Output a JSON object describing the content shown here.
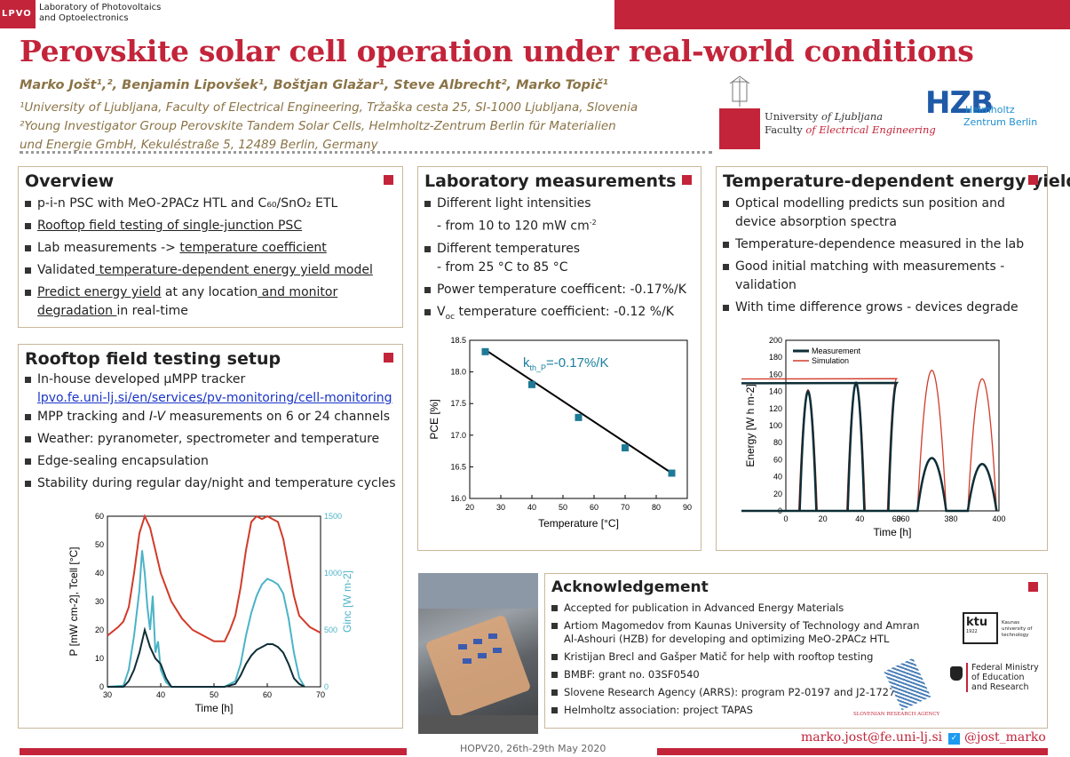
{
  "header": {
    "lab_logo": "LPVO",
    "lab_name_1": "Laboratory of Photovoltaics",
    "lab_name_2": "and Optoelectronics",
    "title": "Perovskite solar cell operation under real-world conditions",
    "authors": "Marko Jošt¹,², Benjamin Lipovšek¹, Boštjan Glažar¹, Steve Albrecht², Marko Topič¹",
    "affil_1": "¹University of Ljubljana, Faculty of Electrical Engineering, Tržaška cesta 25, SI-1000 Ljubljana, Slovenia",
    "affil_2": "²Young Investigator Group Perovskite Tandem Solar Cells, Helmholtz-Zentrum Berlin für Materialien",
    "affil_3": "und Energie GmbH, Kekuléstraße 5, 12489 Berlin, Germany",
    "uni_line1_a": "University ",
    "uni_line1_b": "of Ljubljana",
    "uni_line2_a": "Faculty ",
    "uni_line2_b": "of Electrical Engineering",
    "hzb": "HZB",
    "hzb_sub1": "Helmholtz",
    "hzb_sub2": "Zentrum Berlin"
  },
  "overview": {
    "title": "Overview",
    "items": [
      "p-i-n PSC with MeO-2PACz HTL and C₆₀/SnO₂ ETL",
      "Rooftop field testing of single-junction PSC",
      "Lab measurements -> ",
      "temperature coefficient",
      "Validated",
      " temperature-dependent energy yield model",
      "Predict energy yield",
      " at any location",
      " and monitor",
      "degradation ",
      "in real-time"
    ]
  },
  "rooftop": {
    "title": "Rooftop field testing setup",
    "items": [
      "In-house developed µMPP tracker",
      "lpvo.fe.uni-lj.si/en/services/pv-monitoring/cell-monitoring",
      "MPP tracking and ",
      "I-V",
      " measurements on 6 or 24 channels",
      "Weather: pyranometer, spectrometer and temperature",
      "Edge-sealing encapsulation",
      "Stability during regular day/night and temperature cycles"
    ]
  },
  "lab": {
    "title": "Laboratory measurements",
    "items": [
      "Different light intensities",
      "- from 10 to 120 mW cm",
      "-2",
      "Different temperatures",
      "- from 25 °C to 85 °C",
      "Power temperature coefficent: -0.17%/K",
      "V",
      "oc",
      " temperature coefficient: -0.12 %/K"
    ]
  },
  "energy": {
    "title": "Temperature-dependent energy yield",
    "items": [
      "Optical modelling predicts sun position and device absorption spectra",
      "Temperature-dependence measured in the lab",
      "Good initial matching with measurements - validation",
      "With time difference grows - devices degrade"
    ]
  },
  "ack": {
    "title": "Acknowledgement",
    "items": [
      "Accepted for publication in Advanced Energy Materials",
      "Artiom Magomedov from Kaunas University of Technology and Amran Al-Ashouri (HZB) for developing and optimizing MeO-2PACz HTL",
      "Kristijan Brecl and Gašper Matič for help with rooftop testing",
      "BMBF: grant no. 03SF0540",
      "Slovene Research Agency (ARRS): program P2-0197 and J2-1727",
      "Helmholtz association: project TAPAS"
    ],
    "ktu": "ktu",
    "ktu_sub": "Kaunas university of technology",
    "ktu_year": "1922",
    "bmbf_1": "Federal Ministry",
    "bmbf_2": "of Education",
    "bmbf_3": "and Research",
    "arrs": "SLOVENIAN RESEARCH AGENCY"
  },
  "footer": {
    "conference": "HOPV20, 26th-29th May 2020",
    "email": "marko.jost@fe.uni-lj.si",
    "twitter": "@jost_marko"
  },
  "colors": {
    "accent": "#c3243a",
    "gold": "#8a7346",
    "teal": "#1b7fa0"
  },
  "chart_data": [
    {
      "type": "scatter",
      "title": "",
      "annotation": "k",
      "annotation_sub": "th_P",
      "annotation_rest": "=-0.17%/K",
      "xlabel": "Temperature [°C]",
      "ylabel": "PCE [%]",
      "xlim": [
        20,
        90
      ],
      "ylim": [
        16.0,
        18.5
      ],
      "xticks": [
        "20",
        "30",
        "40",
        "50",
        "60",
        "70",
        "80",
        "90"
      ],
      "yticks": [
        "16.0",
        "16.5",
        "17.0",
        "17.5",
        "18.0",
        "18.5"
      ],
      "x": [
        25,
        40,
        55,
        70,
        85
      ],
      "y": [
        18.32,
        17.8,
        17.28,
        16.8,
        16.4
      ],
      "fit": [
        [
          25,
          18.35
        ],
        [
          85,
          16.4
        ]
      ]
    },
    {
      "type": "line",
      "xlabel": "Time [h]",
      "ylabel_left": "P [mW cm-2], Tcell [°C]",
      "ylabel_right": "Ginc [W m-2]",
      "xlim": [
        30,
        70
      ],
      "ylim": [
        0,
        60
      ],
      "ylim_right": [
        0,
        1500
      ],
      "xticks": [
        "30",
        "40",
        "50",
        "60",
        "70"
      ],
      "yticks": [
        "0",
        "10",
        "20",
        "30",
        "40",
        "50",
        "60"
      ],
      "yticks_right": [
        "0",
        "500",
        "1000",
        "1500"
      ],
      "series": [
        {
          "name": "Tcell",
          "color": "#d13b2a",
          "x": [
            30,
            32,
            33,
            34,
            35,
            36,
            37,
            38,
            39,
            40,
            42,
            44,
            46,
            48,
            50,
            52,
            53,
            54,
            55,
            56,
            57,
            58,
            59,
            60,
            61,
            62,
            63,
            64,
            65,
            66,
            68,
            70
          ],
          "y": [
            18,
            21,
            23,
            28,
            40,
            54,
            60,
            56,
            48,
            40,
            30,
            24,
            20,
            18,
            16,
            16,
            20,
            25,
            35,
            48,
            58,
            60,
            59,
            60,
            59,
            58,
            52,
            42,
            32,
            25,
            21,
            19
          ]
        },
        {
          "name": "Ginc",
          "color": "#4bb3c7",
          "x": [
            30,
            33,
            34,
            35,
            36,
            36.5,
            37,
            37.5,
            38,
            38.5,
            39,
            39.5,
            40,
            41,
            42,
            52,
            54,
            55,
            56,
            57,
            58,
            59,
            60,
            61,
            62,
            63,
            64,
            65,
            66,
            67
          ],
          "y": [
            0,
            10,
            150,
            450,
            850,
            1200,
            1000,
            700,
            500,
            800,
            300,
            400,
            150,
            40,
            0,
            0,
            50,
            200,
            450,
            650,
            800,
            900,
            950,
            930,
            900,
            820,
            600,
            300,
            80,
            0
          ]
        },
        {
          "name": "P",
          "color": "#0e2e36",
          "x": [
            30,
            33,
            34,
            35,
            36,
            37,
            38,
            39,
            40,
            41,
            42,
            52,
            54,
            55,
            56,
            57,
            58,
            59,
            60,
            61,
            62,
            63,
            64,
            65,
            66,
            67
          ],
          "y": [
            0,
            0,
            2,
            6,
            12,
            20,
            14,
            10,
            8,
            3,
            0,
            0,
            1,
            4,
            8,
            11,
            13,
            14,
            15,
            15,
            14,
            12,
            8,
            3,
            1,
            0
          ]
        }
      ]
    },
    {
      "type": "line",
      "xlabel": "Time [h]",
      "ylabel": "Energy [W h m-2]",
      "xticks": [
        "0",
        "20",
        "40",
        "60",
        "360",
        "380",
        "400"
      ],
      "yticks": [
        "0",
        "20",
        "40",
        "60",
        "80",
        "100",
        "120",
        "140",
        "160",
        "180",
        "200"
      ],
      "ylim": [
        0,
        200
      ],
      "legend": [
        "Measurement",
        "Simulation"
      ],
      "series": [
        {
          "name": "Measurement",
          "color": "#0e2e36",
          "x_display": [
            8,
            10,
            12,
            14,
            16,
            18,
            32,
            34,
            36,
            38,
            40,
            56,
            58,
            60,
            62,
            64,
            66,
            0.5,
            0.55,
            0.6,
            0.65,
            0.7,
            0.75,
            0.8,
            0.85
          ],
          "y": [
            0,
            95,
            140,
            100,
            40,
            0,
            0,
            60,
            148,
            90,
            0,
            0,
            60,
            150,
            140,
            60,
            0,
            0,
            30,
            55,
            60,
            40,
            0,
            0,
            0
          ]
        },
        {
          "name": "Simulation",
          "color": "#d13b2a",
          "y": [
            0,
            140,
            150,
            160,
            160
          ]
        }
      ]
    }
  ]
}
